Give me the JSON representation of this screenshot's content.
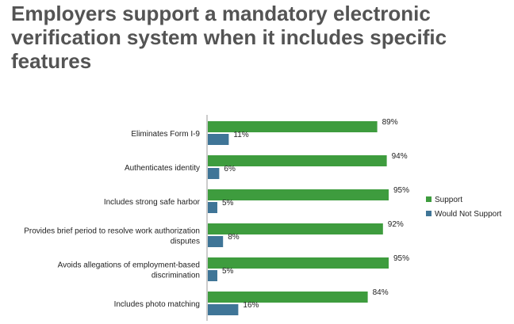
{
  "title": "Employers support a mandatory electronic verification system when it includes specific features",
  "chart_data": {
    "type": "bar",
    "orientation": "horizontal",
    "categories": [
      "Eliminates Form I-9",
      "Authenticates identity",
      "Includes strong safe harbor",
      "Provides brief period to resolve work authorization disputes",
      "Avoids allegations of employment-based discrimination",
      "Includes photo matching"
    ],
    "category_lines": [
      [
        "Eliminates Form I-9"
      ],
      [
        "Authenticates identity"
      ],
      [
        "Includes strong safe harbor"
      ],
      [
        "Provides brief period to resolve work authorization",
        "disputes"
      ],
      [
        "Avoids allegations of employment-based",
        "discrimination"
      ],
      [
        "Includes photo matching"
      ]
    ],
    "series": [
      {
        "name": "Support",
        "values": [
          89,
          94,
          95,
          92,
          95,
          84
        ],
        "labels": [
          "89%",
          "94%",
          "95%",
          "92%",
          "95%",
          "84%"
        ],
        "color": "#3e9c3e"
      },
      {
        "name": "Would Not Support",
        "values": [
          11,
          6,
          5,
          8,
          5,
          16
        ],
        "labels": [
          "11%",
          "6%",
          "5%",
          "8%",
          "5%",
          "16%"
        ],
        "color": "#3f7597"
      }
    ],
    "xlim": [
      0,
      100
    ],
    "grid": false,
    "legend_position": "right"
  }
}
